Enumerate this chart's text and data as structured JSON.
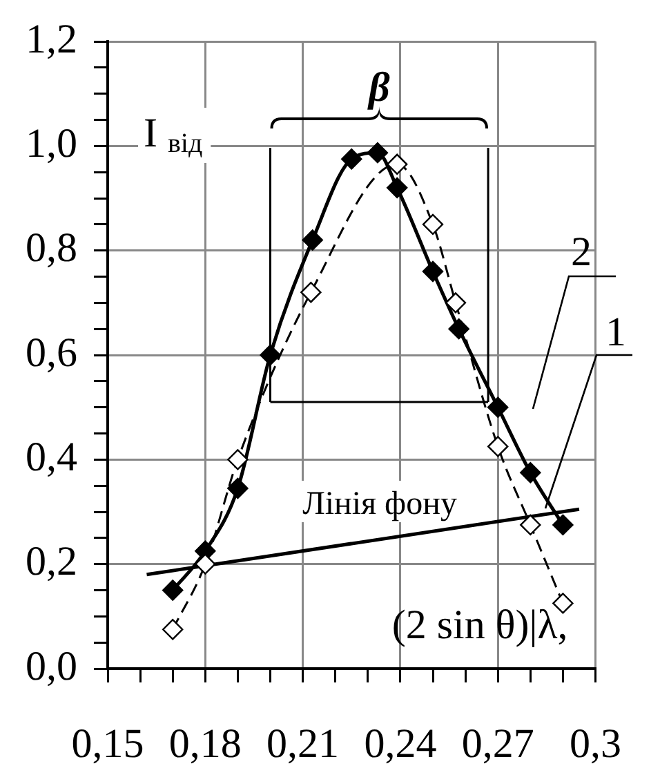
{
  "chart_data": {
    "type": "line",
    "xlabel": "(2 sin θ)|λ,",
    "ylabel": "I $_{від}$",
    "xlim": [
      0.15,
      0.3
    ],
    "ylim": [
      0,
      1.2
    ],
    "xticks": [
      {
        "value": 0.15,
        "label": "0,15"
      },
      {
        "value": 0.16,
        "label": null
      },
      {
        "value": 0.17,
        "label": null
      },
      {
        "value": 0.18,
        "label": "0,18"
      },
      {
        "value": 0.19,
        "label": null
      },
      {
        "value": 0.2,
        "label": null
      },
      {
        "value": 0.21,
        "label": "0,21"
      },
      {
        "value": 0.22,
        "label": null
      },
      {
        "value": 0.23,
        "label": null
      },
      {
        "value": 0.24,
        "label": "0,24"
      },
      {
        "value": 0.25,
        "label": null
      },
      {
        "value": 0.26,
        "label": null
      },
      {
        "value": 0.27,
        "label": "0,27"
      },
      {
        "value": 0.28,
        "label": null
      },
      {
        "value": 0.29,
        "label": null
      },
      {
        "value": 0.3,
        "label": "0,3"
      }
    ],
    "yticks": [
      {
        "value": 0,
        "label": "0,0"
      },
      {
        "value": 0.05,
        "label": null
      },
      {
        "value": 0.1,
        "label": null
      },
      {
        "value": 0.15,
        "label": null
      },
      {
        "value": 0.2,
        "label": "0,2"
      },
      {
        "value": 0.25,
        "label": null
      },
      {
        "value": 0.3,
        "label": null
      },
      {
        "value": 0.35,
        "label": null
      },
      {
        "value": 0.4,
        "label": "0,4"
      },
      {
        "value": 0.45,
        "label": null
      },
      {
        "value": 0.5,
        "label": null
      },
      {
        "value": 0.55,
        "label": null
      },
      {
        "value": 0.6,
        "label": "0,6"
      },
      {
        "value": 0.65,
        "label": null
      },
      {
        "value": 0.7,
        "label": null
      },
      {
        "value": 0.75,
        "label": null
      },
      {
        "value": 0.8,
        "label": "0,8"
      },
      {
        "value": 0.85,
        "label": null
      },
      {
        "value": 0.9,
        "label": null
      },
      {
        "value": 0.95,
        "label": null
      },
      {
        "value": 1.0,
        "label": "1,0"
      },
      {
        "value": 1.05,
        "label": null
      },
      {
        "value": 1.1,
        "label": null
      },
      {
        "value": 1.15,
        "label": null
      },
      {
        "value": 1.2,
        "label": "1,2"
      }
    ],
    "grid": true,
    "legend": false,
    "series": [
      {
        "name": "1",
        "color": "#000000",
        "marker": "diamond",
        "line_style": "dashed",
        "x": [
          0.17,
          0.18,
          0.19,
          0.2125,
          0.239,
          0.25,
          0.257,
          0.27,
          0.28,
          0.29
        ],
        "values": [
          0.075,
          0.2,
          0.4,
          0.72,
          0.965,
          0.85,
          0.7,
          0.425,
          0.275,
          0.125
        ]
      },
      {
        "name": "2",
        "color": "#000000",
        "marker": "diamond",
        "line_style": "solid",
        "x": [
          0.17,
          0.18,
          0.19,
          0.2,
          0.213,
          0.225,
          0.233,
          0.239,
          0.25,
          0.258,
          0.27,
          0.28,
          0.29
        ],
        "values": [
          0.15,
          0.225,
          0.345,
          0.6,
          0.82,
          0.975,
          0.987,
          0.92,
          0.76,
          0.65,
          0.5,
          0.375,
          0.275
        ]
      },
      {
        "name": "Лінія фону",
        "color": "#000000",
        "marker": "none",
        "line_style": "solid",
        "x": [
          0.162,
          0.295
        ],
        "values": [
          0.18,
          0.305
        ]
      }
    ],
    "ref_lines": [
      {
        "axis": "x",
        "value": 0.2
      },
      {
        "axis": "x",
        "value": 0.267
      },
      {
        "axis": "y",
        "value": 0.51
      }
    ],
    "annotations": [
      "β"
    ]
  }
}
